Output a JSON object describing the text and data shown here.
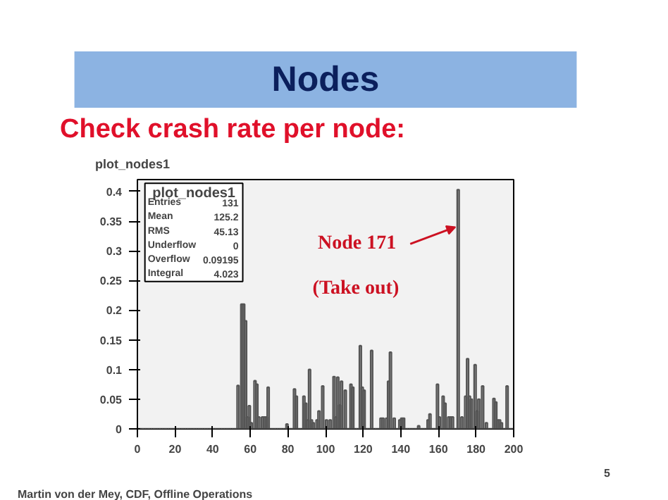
{
  "chart_data": {
    "type": "histogram",
    "title": "Nodes",
    "subtitle": "Check crash rate per node:",
    "bins": [
      0,
      1,
      2,
      3,
      4,
      5,
      6,
      7,
      8,
      9,
      10,
      11,
      12,
      13,
      14,
      15,
      16,
      17,
      18,
      19,
      20,
      21,
      22,
      23,
      24,
      25,
      26,
      27,
      28,
      29,
      30,
      31,
      32,
      33,
      34,
      35,
      36,
      37,
      38,
      39,
      40,
      41,
      42,
      43,
      44,
      45,
      46,
      47,
      48,
      49,
      50,
      51,
      52,
      53,
      54,
      55,
      56,
      57,
      58,
      59,
      60,
      61,
      62,
      63,
      64,
      65,
      66,
      67,
      68,
      69,
      70,
      71,
      72,
      73,
      74,
      75,
      76,
      77,
      78,
      79,
      80,
      81,
      82,
      83,
      84,
      85,
      86,
      87,
      88,
      89,
      90,
      91,
      92,
      93,
      94,
      95,
      96,
      97,
      98,
      99,
      100,
      101,
      102,
      103,
      104,
      105,
      106,
      107,
      108,
      109,
      110,
      111,
      112,
      113,
      114,
      115,
      116,
      117,
      118,
      119,
      120,
      121,
      122,
      123,
      124,
      125,
      126,
      127,
      128,
      129,
      130,
      131,
      132,
      133,
      134,
      135,
      136,
      137,
      138,
      139,
      140,
      141,
      142,
      143,
      144,
      145,
      146,
      147,
      148,
      149,
      150,
      151,
      152,
      153,
      154,
      155,
      156,
      157,
      158,
      159,
      160,
      161,
      162,
      163,
      164,
      165,
      166,
      167,
      168,
      169,
      170,
      171,
      172,
      173,
      174,
      175,
      176,
      177,
      178,
      179,
      180,
      181,
      182,
      183,
      184,
      185,
      186,
      187,
      188,
      189,
      190,
      191,
      192,
      193,
      194,
      195,
      196,
      197,
      198,
      199,
      200
    ],
    "values": [
      0,
      0,
      0,
      0,
      0,
      0,
      0,
      0,
      0,
      0,
      0,
      0,
      0,
      0,
      0,
      0,
      0,
      0,
      0,
      0,
      0,
      0,
      0,
      0,
      0,
      0,
      0,
      0,
      0,
      0,
      0,
      0,
      0,
      0,
      0,
      0,
      0,
      0,
      0,
      0,
      0,
      0,
      0,
      0,
      0,
      0,
      0,
      0,
      0,
      0,
      0,
      0,
      0,
      0.073,
      0,
      0.21,
      0.21,
      0.182,
      0.02,
      0.039,
      0.01,
      0,
      0.081,
      0.075,
      0.02,
      0,
      0.02,
      0.02,
      0.02,
      0.07,
      0,
      0,
      0,
      0,
      0,
      0,
      0,
      0,
      0,
      0.008,
      0,
      0,
      0,
      0.067,
      0.055,
      0,
      0,
      0,
      0.055,
      0.043,
      0.015,
      0.1,
      0.015,
      0.01,
      0,
      0.015,
      0.03,
      0,
      0.072,
      0,
      0.015,
      0,
      0.015,
      0,
      0.088,
      0.02,
      0.087,
      0.04,
      0.08,
      0,
      0.065,
      0,
      0,
      0.075,
      0.07,
      0,
      0,
      0,
      0.14,
      0.07,
      0.065,
      0,
      0,
      0,
      0.132,
      0,
      0,
      0,
      0,
      0.018,
      0.018,
      0,
      0.018,
      0.08,
      0.129,
      0,
      0.018,
      0,
      0,
      0.015,
      0.018,
      0.018,
      0,
      0,
      0,
      0,
      0,
      0,
      0,
      0.005,
      0,
      0,
      0,
      0,
      0.015,
      0.025,
      0,
      0,
      0,
      0.075,
      0.02,
      0,
      0.055,
      0.043,
      0,
      0.02,
      0.02,
      0.02,
      0,
      0,
      0.403,
      0,
      0.02,
      0,
      0.055,
      0.118,
      0.055,
      0.05,
      0,
      0.108,
      0.03,
      0.05,
      0,
      0.072,
      0,
      0.01,
      0,
      0,
      0,
      0.051,
      0.045,
      0.015,
      0.015,
      0.01,
      0,
      0,
      0.072,
      0,
      0,
      0
    ],
    "color": "#555555",
    "xlim": [
      0,
      200
    ],
    "xticks": [
      0,
      20,
      40,
      60,
      80,
      100,
      120,
      140,
      160,
      180,
      200
    ],
    "ylim": [
      0,
      0.42
    ],
    "yticks": [
      0,
      0.05,
      0.1,
      0.15,
      0.2,
      0.25,
      0.3,
      0.35,
      0.4
    ],
    "grid": false,
    "annotations": [
      "plot_nodes1",
      "plot_nodes1",
      "Entries",
      "131",
      "Mean",
      "125.2",
      "RMS",
      "45.13",
      "Underflow",
      "0",
      "Overflow",
      "0.09195",
      "Integral",
      "4.023",
      {
        "text": "Node 171",
        "x": 169,
        "y": 0.34
      },
      "(Take out)",
      "Martin von der Mey, CDF, Offline Operations",
      "5"
    ]
  }
}
